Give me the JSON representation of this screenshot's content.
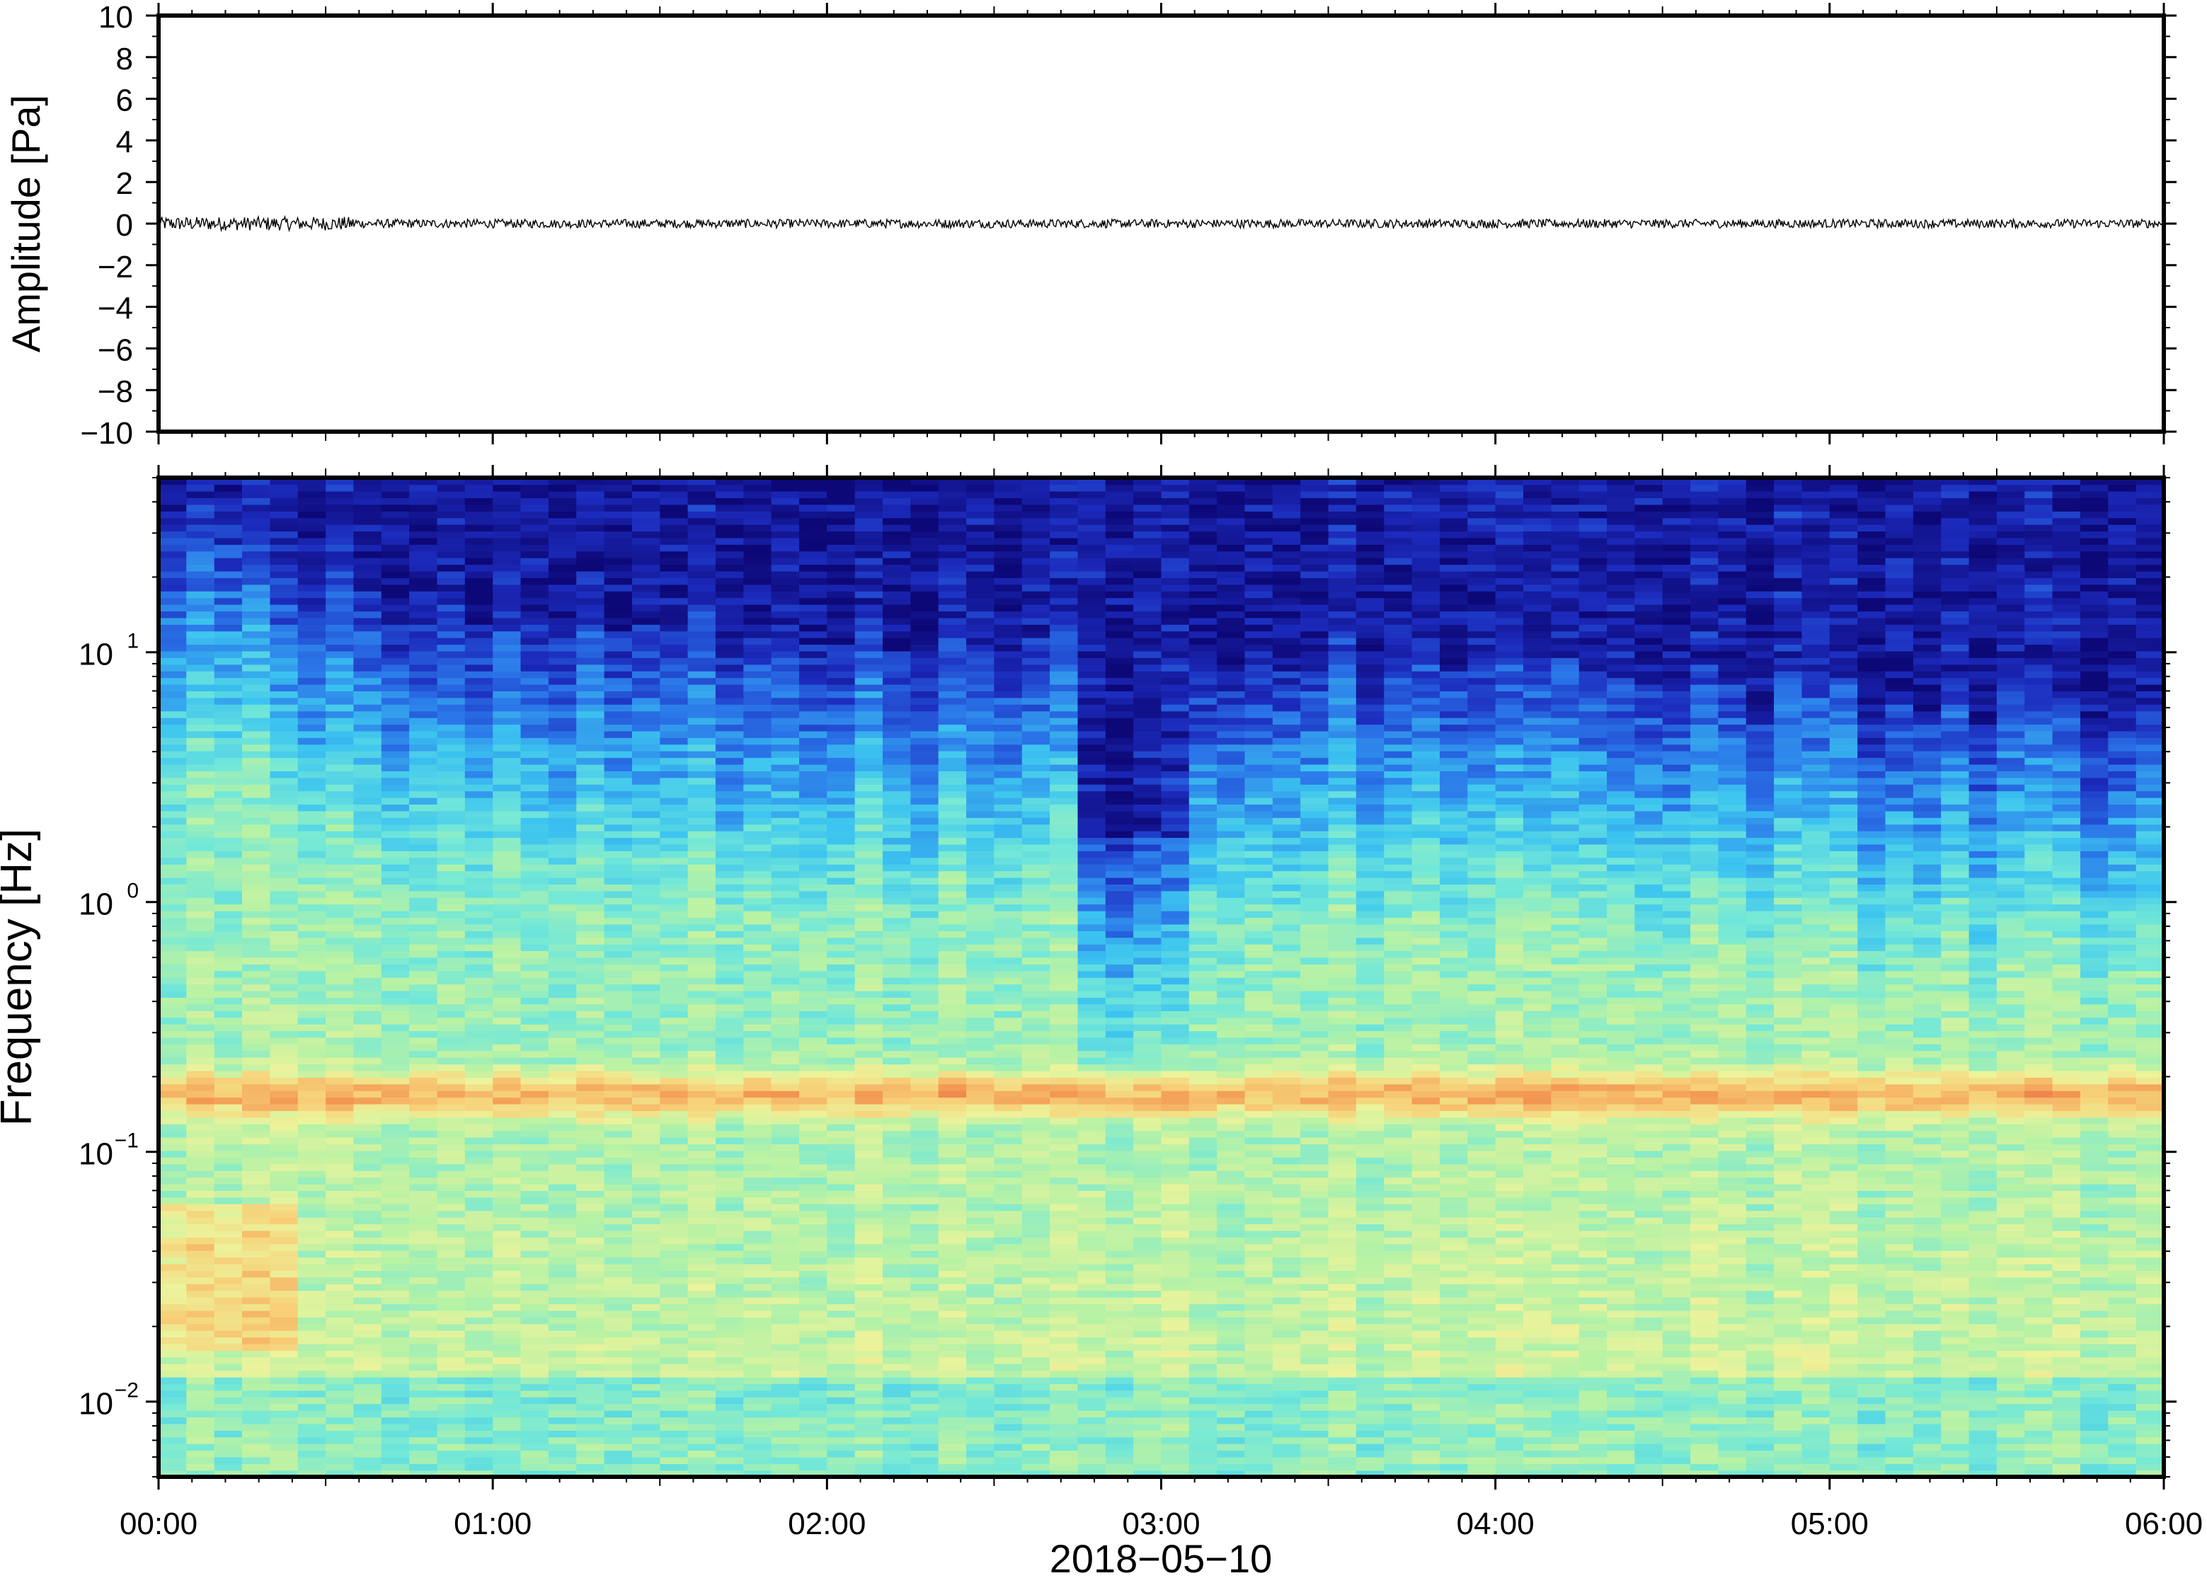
{
  "chart_data": [
    {
      "type": "line",
      "panel": "waveform",
      "ylabel": "Amplitude [Pa]",
      "ylim": [
        -10,
        10
      ],
      "ytick_values": [
        10,
        8,
        6,
        4,
        2,
        0,
        -2,
        -4,
        -6,
        -8,
        -10
      ],
      "ytick_labels": [
        "10",
        "8",
        "6",
        "4",
        "2",
        "0",
        "−2",
        "−4",
        "−6",
        "−8",
        "−10"
      ],
      "x_range": [
        "00:00",
        "06:00"
      ],
      "approx_signal_amplitude_pa": 0.3,
      "line_color": "#000000",
      "grid": false
    },
    {
      "type": "heatmap",
      "panel": "spectrogram",
      "ylabel": "Frequency [Hz]",
      "yscale": "log",
      "ylim": [
        0.005,
        50
      ],
      "ytick_values": [
        10,
        1,
        0.1,
        0.01
      ],
      "ytick_base": "10",
      "ytick_exponents": [
        "1",
        "0",
        "−1",
        "−2"
      ],
      "xlabel": "2018−05−10",
      "xtick_labels": [
        "00:00",
        "01:00",
        "02:00",
        "03:00",
        "04:00",
        "05:00",
        "06:00"
      ],
      "x_hours": [
        0,
        6
      ],
      "microbarom_peak_hz": 0.17,
      "quiet_interval_hours": [
        2.78,
        3.05
      ],
      "colormap": [
        "#0d0877",
        "#1c2bbd",
        "#2a74e8",
        "#3cc4f0",
        "#73e8d8",
        "#b7f2a5",
        "#ecf39b",
        "#f7cf77",
        "#f39a54",
        "#e8583c"
      ],
      "grid": false
    }
  ]
}
